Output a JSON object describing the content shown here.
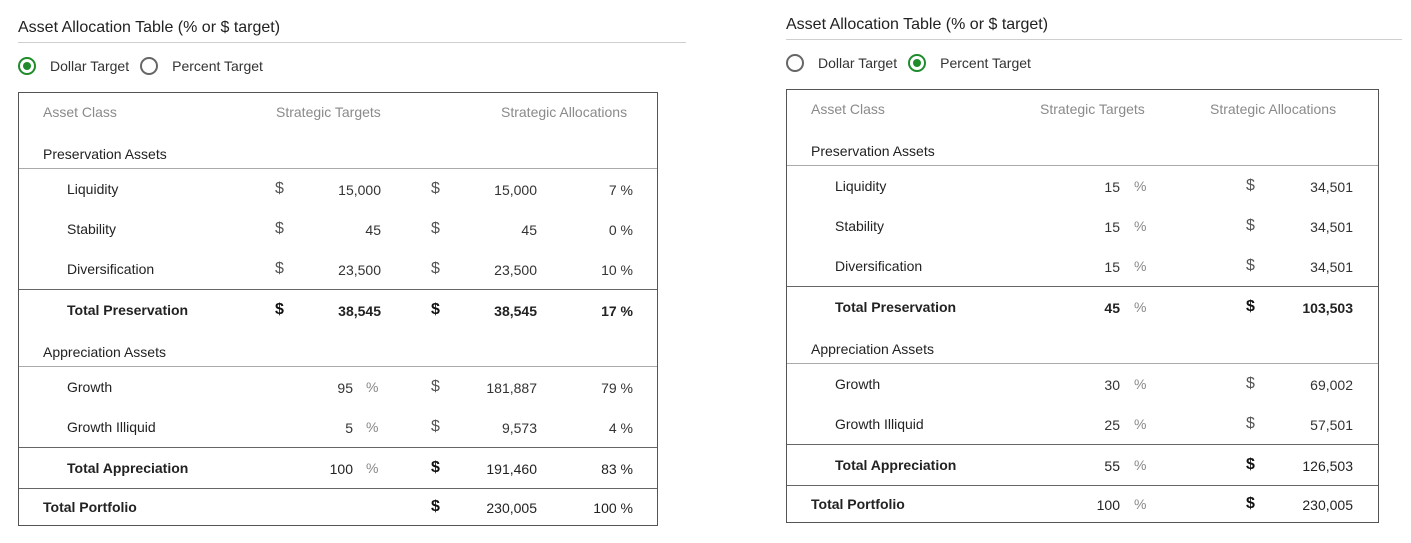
{
  "title": "Asset Allocation Table (% or $ target)",
  "radio_options": [
    "Dollar Target",
    "Percent Target"
  ],
  "column_headers": {
    "asset_class": "Asset Class",
    "targets": "Strategic Targets",
    "allocations": "Strategic Allocations"
  },
  "sections": {
    "preservation": "Preservation Assets",
    "appreciation": "Appreciation Assets"
  },
  "accent_color": "#1e8c2b",
  "left": {
    "selected": "Dollar Target",
    "preservation_rows": [
      {
        "label": "Liquidity",
        "target_unit": "$",
        "target": "15,000",
        "alloc_unit": "$",
        "alloc": "15,000",
        "pct": "7 %"
      },
      {
        "label": "Stability",
        "target_unit": "$",
        "target": "45",
        "alloc_unit": "$",
        "alloc": "45",
        "pct": "0 %"
      },
      {
        "label": "Diversification",
        "target_unit": "$",
        "target": "23,500",
        "alloc_unit": "$",
        "alloc": "23,500",
        "pct": "10 %"
      }
    ],
    "total_preservation": {
      "label": "Total Preservation",
      "target_unit": "$",
      "target": "38,545",
      "alloc_unit": "$",
      "alloc": "38,545",
      "pct": "17 %"
    },
    "appreciation_rows": [
      {
        "label": "Growth",
        "target": "95",
        "target_unit": "%",
        "alloc_unit": "$",
        "alloc": "181,887",
        "pct": "79 %"
      },
      {
        "label": "Growth Illiquid",
        "target": "5",
        "target_unit": "%",
        "alloc_unit": "$",
        "alloc": "9,573",
        "pct": "4 %"
      }
    ],
    "total_appreciation": {
      "label": "Total Appreciation",
      "target": "100",
      "target_unit": "%",
      "alloc_unit": "$",
      "alloc": "191,460",
      "pct": "83 %"
    },
    "total_portfolio": {
      "label": "Total Portfolio",
      "alloc_unit": "$",
      "alloc": "230,005",
      "pct": "100 %"
    }
  },
  "right": {
    "selected": "Percent Target",
    "preservation_rows": [
      {
        "label": "Liquidity",
        "target": "15",
        "target_unit": "%",
        "alloc_unit": "$",
        "alloc": "34,501"
      },
      {
        "label": "Stability",
        "target": "15",
        "target_unit": "%",
        "alloc_unit": "$",
        "alloc": "34,501"
      },
      {
        "label": "Diversification",
        "target": "15",
        "target_unit": "%",
        "alloc_unit": "$",
        "alloc": "34,501"
      }
    ],
    "total_preservation": {
      "label": "Total Preservation",
      "target": "45",
      "target_unit": "%",
      "alloc_unit": "$",
      "alloc": "103,503"
    },
    "appreciation_rows": [
      {
        "label": "Growth",
        "target": "30",
        "target_unit": "%",
        "alloc_unit": "$",
        "alloc": "69,002"
      },
      {
        "label": "Growth Illiquid",
        "target": "25",
        "target_unit": "%",
        "alloc_unit": "$",
        "alloc": "57,501"
      }
    ],
    "total_appreciation": {
      "label": "Total Appreciation",
      "target": "55",
      "target_unit": "%",
      "alloc_unit": "$",
      "alloc": "126,503"
    },
    "total_portfolio": {
      "label": "Total Portfolio",
      "target": "100",
      "target_unit": "%",
      "alloc_unit": "$",
      "alloc": "230,005"
    }
  }
}
